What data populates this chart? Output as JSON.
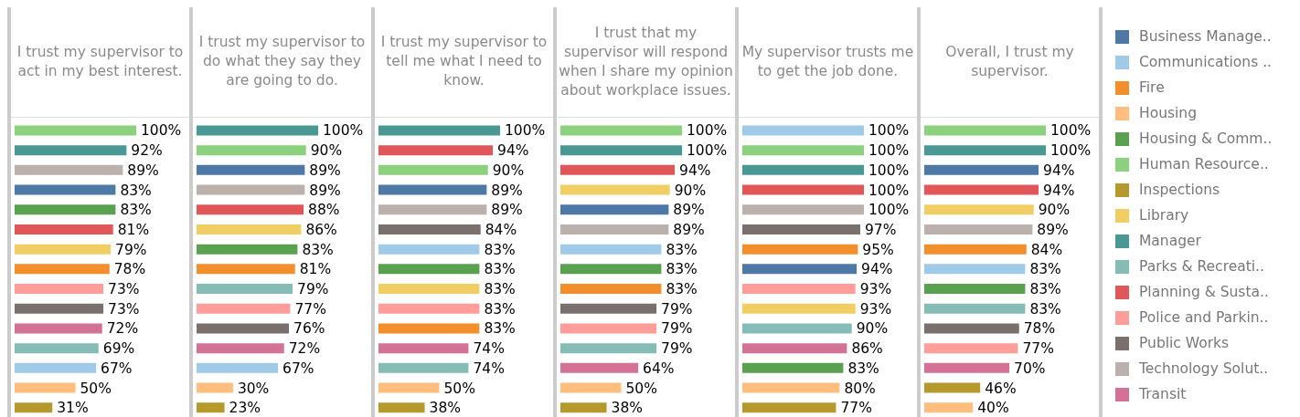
{
  "chart_data": [
    {
      "type": "bar",
      "orientation": "horizontal",
      "title": "I trust my supervisor to act in my best interest.",
      "categories": [
        null,
        null,
        null,
        null,
        null,
        null,
        null,
        null,
        null,
        null,
        null,
        null,
        null,
        null,
        null
      ],
      "values": [
        100,
        92,
        89,
        83,
        83,
        81,
        79,
        78,
        73,
        73,
        72,
        69,
        67,
        50,
        31
      ],
      "value_labels": [
        "100%",
        "92%",
        "89%",
        "83%",
        "83%",
        "81%",
        "79%",
        "78%",
        "73%",
        "73%",
        "72%",
        "69%",
        "67%",
        "50%",
        "31%"
      ],
      "colors": [
        "#8cd17d",
        "#499894",
        "#bab0ac",
        "#4e79a7",
        "#59a14f",
        "#e15759",
        "#f1ce63",
        "#f28e2b",
        "#ff9d9a",
        "#79706e",
        "#d37295",
        "#86bcb6",
        "#a0cbe8",
        "#ffbe7d",
        "#b6992d"
      ]
    },
    {
      "type": "bar",
      "orientation": "horizontal",
      "title": "I trust my supervisor to do what they say they are going to do.",
      "categories": [
        null,
        null,
        null,
        null,
        null,
        null,
        null,
        null,
        null,
        null,
        null,
        null,
        null,
        null,
        null
      ],
      "values": [
        100,
        90,
        89,
        89,
        88,
        86,
        83,
        81,
        79,
        77,
        76,
        72,
        67,
        30,
        23
      ],
      "value_labels": [
        "100%",
        "90%",
        "89%",
        "89%",
        "88%",
        "86%",
        "83%",
        "81%",
        "79%",
        "77%",
        "76%",
        "72%",
        "67%",
        "30%",
        "23%"
      ],
      "colors": [
        "#499894",
        "#8cd17d",
        "#4e79a7",
        "#bab0ac",
        "#e15759",
        "#f1ce63",
        "#59a14f",
        "#f28e2b",
        "#86bcb6",
        "#ff9d9a",
        "#79706e",
        "#d37295",
        "#a0cbe8",
        "#ffbe7d",
        "#b6992d"
      ]
    },
    {
      "type": "bar",
      "orientation": "horizontal",
      "title": "I trust my supervisor to tell me what I need to know.",
      "categories": [
        null,
        null,
        null,
        null,
        null,
        null,
        null,
        null,
        null,
        null,
        null,
        null,
        null,
        null,
        null
      ],
      "values": [
        100,
        94,
        90,
        89,
        89,
        84,
        83,
        83,
        83,
        83,
        83,
        74,
        74,
        50,
        38
      ],
      "value_labels": [
        "100%",
        "94%",
        "90%",
        "89%",
        "89%",
        "84%",
        "83%",
        "83%",
        "83%",
        "83%",
        "83%",
        "74%",
        "74%",
        "50%",
        "38%"
      ],
      "colors": [
        "#499894",
        "#e15759",
        "#8cd17d",
        "#4e79a7",
        "#bab0ac",
        "#79706e",
        "#a0cbe8",
        "#59a14f",
        "#f1ce63",
        "#ff9d9a",
        "#f28e2b",
        "#d37295",
        "#86bcb6",
        "#ffbe7d",
        "#b6992d"
      ]
    },
    {
      "type": "bar",
      "orientation": "horizontal",
      "title": "I trust that my supervisor will respond when I share my opinion about workplace issues.",
      "categories": [
        null,
        null,
        null,
        null,
        null,
        null,
        null,
        null,
        null,
        null,
        null,
        null,
        null,
        null,
        null
      ],
      "values": [
        100,
        100,
        94,
        90,
        89,
        89,
        83,
        83,
        83,
        79,
        79,
        79,
        64,
        50,
        38
      ],
      "value_labels": [
        "100%",
        "100%",
        "94%",
        "90%",
        "89%",
        "89%",
        "83%",
        "83%",
        "83%",
        "79%",
        "79%",
        "79%",
        "64%",
        "50%",
        "38%"
      ],
      "colors": [
        "#8cd17d",
        "#499894",
        "#e15759",
        "#f1ce63",
        "#4e79a7",
        "#bab0ac",
        "#a0cbe8",
        "#59a14f",
        "#f28e2b",
        "#79706e",
        "#ff9d9a",
        "#86bcb6",
        "#d37295",
        "#ffbe7d",
        "#b6992d"
      ]
    },
    {
      "type": "bar",
      "orientation": "horizontal",
      "title": "My supervisor trusts me to get the job done.",
      "categories": [
        null,
        null,
        null,
        null,
        null,
        null,
        null,
        null,
        null,
        null,
        null,
        null,
        null,
        null,
        null
      ],
      "values": [
        100,
        100,
        100,
        100,
        100,
        97,
        95,
        94,
        93,
        93,
        90,
        86,
        83,
        80,
        77
      ],
      "value_labels": [
        "100%",
        "100%",
        "100%",
        "100%",
        "100%",
        "97%",
        "95%",
        "94%",
        "93%",
        "93%",
        "90%",
        "86%",
        "83%",
        "80%",
        "77%"
      ],
      "colors": [
        "#a0cbe8",
        "#8cd17d",
        "#499894",
        "#e15759",
        "#bab0ac",
        "#79706e",
        "#f28e2b",
        "#4e79a7",
        "#ff9d9a",
        "#f1ce63",
        "#86bcb6",
        "#d37295",
        "#59a14f",
        "#ffbe7d",
        "#b6992d"
      ]
    },
    {
      "type": "bar",
      "orientation": "horizontal",
      "title": "Overall, I trust my supervisor.",
      "categories": [
        null,
        null,
        null,
        null,
        null,
        null,
        null,
        null,
        null,
        null,
        null,
        null,
        null,
        null,
        null
      ],
      "values": [
        100,
        100,
        94,
        94,
        90,
        89,
        84,
        83,
        83,
        83,
        78,
        77,
        70,
        46,
        40
      ],
      "value_labels": [
        "100%",
        "100%",
        "94%",
        "94%",
        "90%",
        "89%",
        "84%",
        "83%",
        "83%",
        "83%",
        "78%",
        "77%",
        "70%",
        "46%",
        "40%"
      ],
      "colors": [
        "#8cd17d",
        "#499894",
        "#4e79a7",
        "#e15759",
        "#f1ce63",
        "#bab0ac",
        "#f28e2b",
        "#a0cbe8",
        "#59a14f",
        "#86bcb6",
        "#79706e",
        "#ff9d9a",
        "#d37295",
        "#b6992d",
        "#ffbe7d"
      ]
    },
    {
      "type": "other",
      "categories": [
        "Business Manage..",
        "Communications ..",
        "Fire",
        "Housing",
        "Housing & Comm..",
        "Human Resource..",
        "Inspections",
        "Library",
        "Manager",
        "Parks & Recreati..",
        "Planning & Susta..",
        "Police and Parkin..",
        "Public Works",
        "Technology Solut..",
        "Transit"
      ],
      "colors": [
        "#4e79a7",
        "#a0cbe8",
        "#f28e2b",
        "#ffbe7d",
        "#59a14f",
        "#8cd17d",
        "#b6992d",
        "#f1ce63",
        "#499894",
        "#86bcb6",
        "#e15759",
        "#ff9d9a",
        "#79706e",
        "#bab0ac",
        "#d37295"
      ]
    }
  ]
}
